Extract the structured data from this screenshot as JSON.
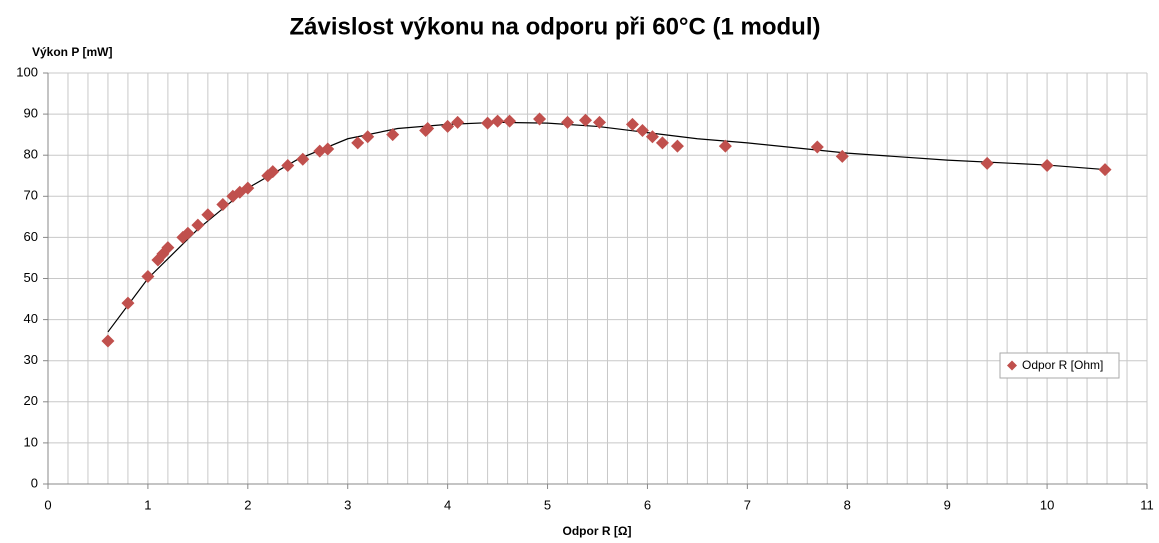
{
  "chart_data": {
    "type": "scatter",
    "title": "Závislost výkonu na odporu při 60°C (1 modul)",
    "y_label": "Výkon P [mW]",
    "x_label": "Odpor R [Ω]",
    "legend": "right",
    "grid": true,
    "xlim": [
      0,
      11
    ],
    "ylim": [
      0,
      100
    ],
    "xticks": [
      0,
      1,
      2,
      3,
      4,
      5,
      6,
      7,
      8,
      9,
      10,
      11
    ],
    "yticks": [
      0,
      10,
      20,
      30,
      40,
      50,
      60,
      70,
      80,
      90,
      100
    ],
    "series": [
      {
        "name": "Odpor R [Ohm]",
        "color": "#c0504d",
        "x": [
          0.6,
          0.8,
          1.0,
          1.1,
          1.15,
          1.2,
          1.35,
          1.4,
          1.5,
          1.6,
          1.75,
          1.85,
          1.92,
          2.0,
          2.2,
          2.25,
          2.4,
          2.55,
          2.72,
          2.8,
          3.1,
          3.2,
          3.45,
          3.78,
          3.8,
          4.0,
          4.1,
          4.4,
          4.5,
          4.62,
          4.92,
          5.2,
          5.38,
          5.52,
          5.85,
          5.95,
          6.05,
          6.15,
          6.3,
          6.78,
          7.7,
          7.95,
          9.4,
          10.0,
          10.58
        ],
        "values": [
          34.8,
          44,
          50.5,
          54.5,
          56,
          57.5,
          60,
          61,
          63,
          65.5,
          68,
          70,
          71,
          72,
          75,
          76,
          77.5,
          79,
          81,
          81.5,
          83,
          84.5,
          85,
          86,
          86.5,
          87,
          88,
          87.8,
          88.3,
          88.3,
          88.8,
          88,
          88.5,
          88,
          87.5,
          86,
          84.5,
          83,
          82.2,
          82.2,
          82,
          79.7,
          78,
          77.5,
          76.5
        ]
      }
    ],
    "trendline": {
      "color": "#000000",
      "x": [
        0.6,
        1.0,
        1.5,
        2.0,
        2.5,
        3.0,
        3.5,
        4.0,
        4.5,
        5.0,
        5.5,
        6.0,
        6.5,
        7.0,
        8.0,
        9.0,
        10.0,
        10.58
      ],
      "values": [
        37,
        50,
        62,
        72,
        79,
        84,
        86.5,
        87.5,
        88,
        87.8,
        87,
        85.5,
        84,
        83,
        80.5,
        78.8,
        77.6,
        76.5
      ]
    }
  }
}
